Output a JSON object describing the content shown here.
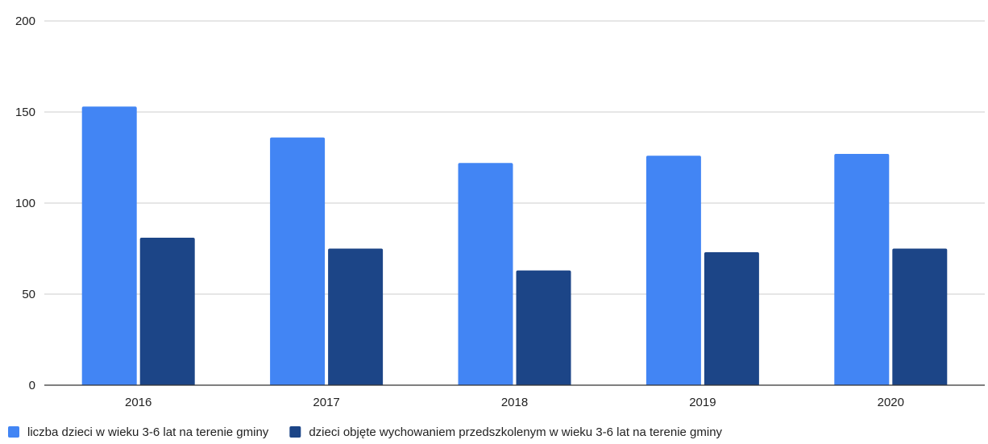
{
  "chart_data": {
    "type": "bar",
    "title": "",
    "xlabel": "",
    "ylabel": "",
    "categories": [
      "2016",
      "2017",
      "2018",
      "2019",
      "2020"
    ],
    "series": [
      {
        "name": "liczba dzieci w wieku 3-6 lat na terenie gminy",
        "color": "#4285f4",
        "values": [
          153,
          136,
          122,
          126,
          127
        ]
      },
      {
        "name": "dzieci objęte wychowaniem przedszkolenym w wieku 3-6 lat na terenie gminy",
        "color": "#1c4587",
        "values": [
          81,
          75,
          63,
          73,
          75
        ]
      }
    ],
    "ylim": [
      0,
      200
    ],
    "yticks": [
      0,
      50,
      100,
      150,
      200
    ],
    "grid": true,
    "legend": "bottom-left"
  }
}
